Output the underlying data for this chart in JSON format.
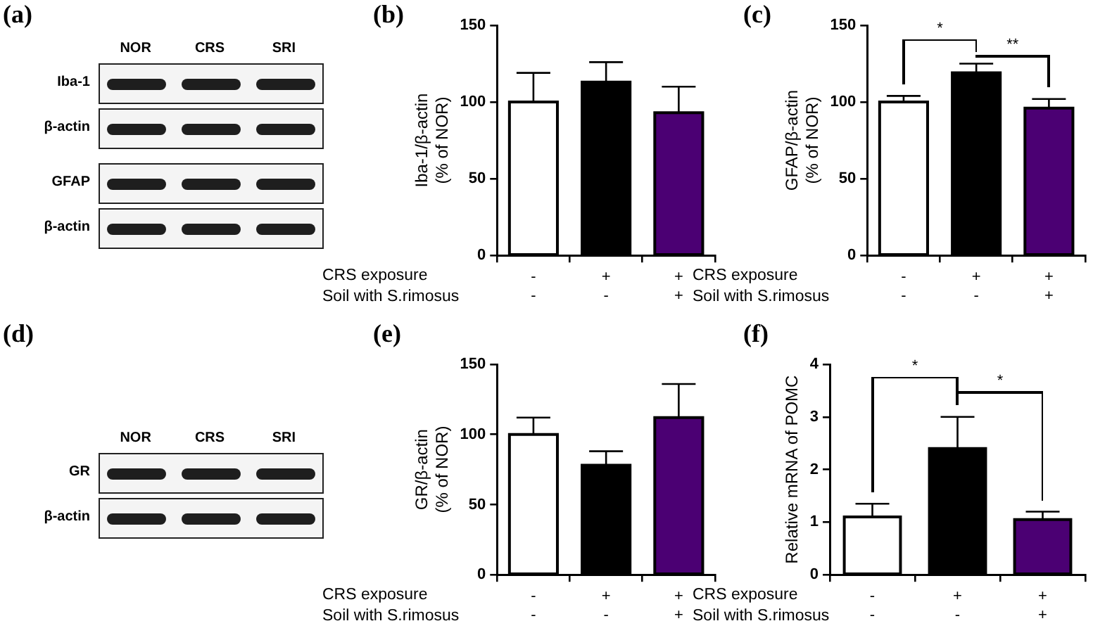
{
  "chart_data": [
    {
      "type": "other",
      "title": "(a)",
      "categories": [
        "NOR",
        "CRS",
        "SRI"
      ],
      "annotations": [
        "Iba-1",
        "β-actin",
        "GFAP",
        "β-actin"
      ]
    },
    {
      "type": "bar",
      "title": "(b)",
      "ylabel": "Iba-1/β-actin\n(% of NOR)",
      "xlabel": "CRS exposure\nSoil with S.rimosus",
      "categories": [
        "-\n-",
        "+\n-",
        "+\n+"
      ],
      "values": [
        100,
        113,
        93
      ],
      "errors": [
        [
          100,
          119
        ],
        [
          113,
          126
        ],
        [
          93,
          110
        ]
      ],
      "colors": [
        "#ffffff",
        "#000000",
        "#4b0073"
      ],
      "ylim": [
        0,
        150
      ],
      "yticks": [
        0,
        50,
        100,
        150
      ],
      "grid": false
    },
    {
      "type": "bar",
      "title": "(c)",
      "ylabel": "GFAP/β-actin\n(% of NOR)",
      "xlabel": "CRS exposure\nSoil with S.rimosus",
      "categories": [
        "-\n-",
        "+\n-",
        "+\n+"
      ],
      "values": [
        100,
        119,
        96
      ],
      "errors": [
        [
          100,
          104
        ],
        [
          119,
          125
        ],
        [
          96,
          102
        ]
      ],
      "colors": [
        "#ffffff",
        "#000000",
        "#4b0073"
      ],
      "ylim": [
        0,
        150
      ],
      "yticks": [
        0,
        50,
        100,
        150
      ],
      "grid": false,
      "annotations": [
        "*",
        "**"
      ]
    },
    {
      "type": "other",
      "title": "(d)",
      "categories": [
        "NOR",
        "CRS",
        "SRI"
      ],
      "annotations": [
        "GR",
        "β-actin"
      ]
    },
    {
      "type": "bar",
      "title": "(e)",
      "ylabel": "GR/β-actin\n(% of NOR)",
      "xlabel": "CRS exposure\nSoil with S.rimosus",
      "categories": [
        "-\n-",
        "+\n-",
        "+\n+"
      ],
      "values": [
        100,
        78,
        112
      ],
      "errors": [
        [
          100,
          112
        ],
        [
          78,
          88
        ],
        [
          112,
          136
        ]
      ],
      "colors": [
        "#ffffff",
        "#000000",
        "#4b0073"
      ],
      "ylim": [
        0,
        150
      ],
      "yticks": [
        0,
        50,
        100,
        150
      ],
      "grid": false
    },
    {
      "type": "bar",
      "title": "(f)",
      "ylabel": "Relative mRNA of POMC",
      "xlabel": "CRS exposure\nSoil with S.rimosus",
      "categories": [
        "-\n-",
        "+\n-",
        "+\n+"
      ],
      "values": [
        1.1,
        2.4,
        1.05
      ],
      "errors": [
        [
          1.1,
          1.35
        ],
        [
          2.4,
          3.0
        ],
        [
          1.05,
          1.2
        ]
      ],
      "colors": [
        "#ffffff",
        "#000000",
        "#4b0073"
      ],
      "ylim": [
        0,
        4
      ],
      "yticks": [
        0,
        1,
        2,
        3,
        4
      ],
      "grid": false,
      "annotations": [
        "*",
        "*"
      ]
    }
  ]
}
